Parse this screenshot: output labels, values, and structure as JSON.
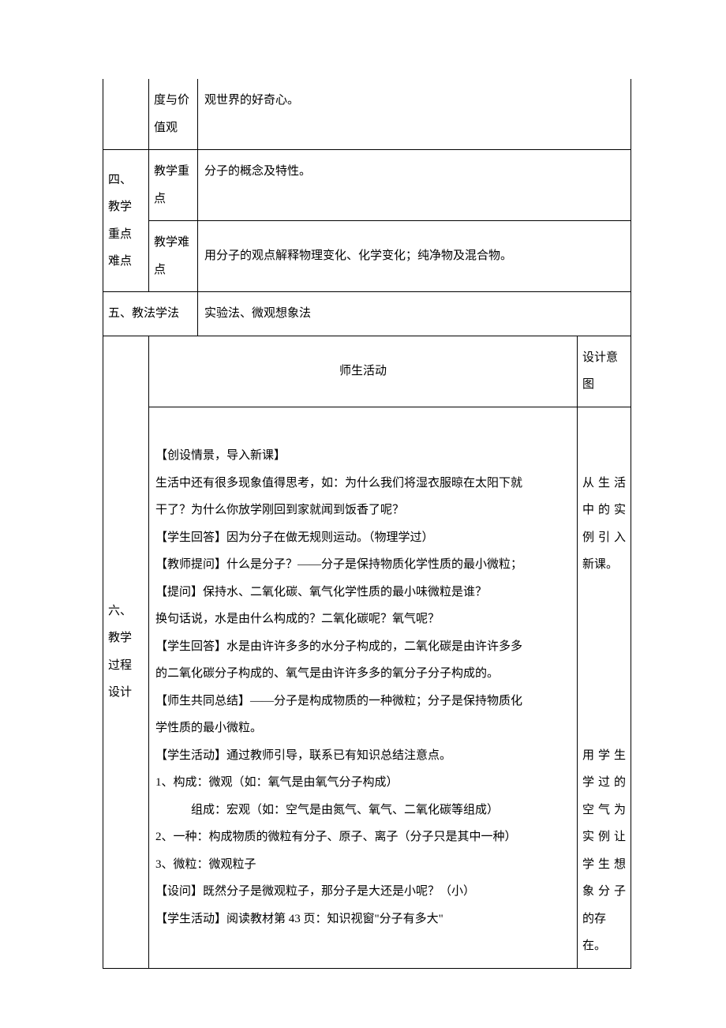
{
  "row1": {
    "col2_line1": "度与价",
    "col2_line2": "值观",
    "content": "观世界的好奇心。"
  },
  "section4": {
    "label_line1": "四、",
    "label_line2": "教学",
    "label_line3": "重点",
    "label_line4": "难点",
    "key_label_line1": "教学重",
    "key_label_line2": "点",
    "key_content": "分子的概念及特性。",
    "diff_label_line1": "教学难",
    "diff_label_line2": "点",
    "diff_content": "用分子的观点解释物理变化、化学变化；纯净物及混合物。"
  },
  "section5": {
    "label": "五、教法学法",
    "content": "实验法、微观想象法"
  },
  "section6": {
    "header_mid": "师生活动",
    "header_right_line1": "设计意",
    "header_right_line2": "图",
    "label_line1": "六、",
    "label_line2": "教学",
    "label_line3": "过程",
    "label_line4": "设计",
    "body_lines": [
      "",
      "【创设情景，导入新课】",
      "生活中还有很多现象值得思考，如：为什么我们将湿衣服晾在太阳下就",
      "干了？为什么你放学刚回到家就闻到饭香了呢？",
      "【学生回答】因为分子在做无规则运动。（物理学过）",
      "【教师提问】什么是分子？——分子是保持物质化学性质的最小微粒；",
      "【提问】保持水、二氧化碳、氧气化学性质的最小味微粒是谁？",
      "换句话说，水是由什么构成的？二氧化碳呢？氧气呢？",
      "【学生回答】水是由许许多多的水分子构成的，二氧化碳是由许许多多",
      "的二氧化碳分子构成的、氧气是由许许多多的氧分子分子构成的。",
      "【师生共同总结】——分子是构成物质的一种微粒；分子是保持物质化",
      "学性质的最小微粒。",
      "【学生活动】通过教师引导，联系已有知识总结注意点。",
      "1、构成：微观（如：氧气是由氧气分子构成）",
      "　　　组成：宏观（如：空气是由氮气、氧气、二氧化碳等组成）",
      "2、一种：构成物质的微粒有分子、原子、离子（分子只是其中一种）",
      "3、微粒：微观粒子",
      "【设问】既然分子是微观粒子，那分子是大还是小呢？（小）",
      "【学生活动】阅读教材第 43 页：知识视窗\"分子有多大\""
    ],
    "right_lines": [
      "",
      "",
      "从生活",
      "中的实",
      "例引入",
      "新课。",
      "",
      "",
      "",
      "",
      "",
      "",
      "用学生",
      "学过的",
      "空气为",
      "实例让",
      "学生想",
      "象分子",
      "的存在。"
    ],
    "right_justify_flags": [
      false,
      false,
      true,
      true,
      true,
      false,
      false,
      false,
      false,
      false,
      false,
      false,
      true,
      true,
      true,
      true,
      true,
      true,
      false
    ]
  }
}
